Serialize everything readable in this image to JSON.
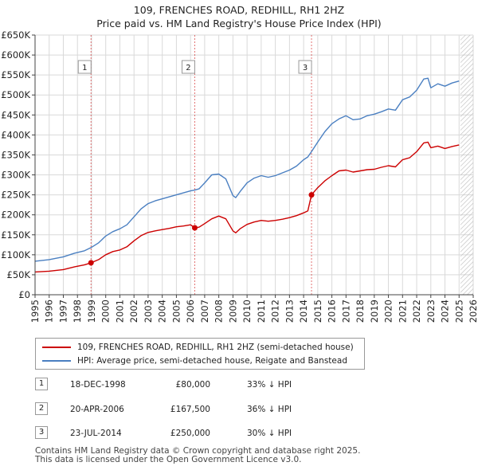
{
  "header": {
    "title_line1": "109, FRENCHES ROAD, REDHILL, RH1 2HZ",
    "title_line2": "Price paid vs. HM Land Registry's House Price Index (HPI)"
  },
  "chart_data": {
    "type": "line",
    "x_range": [
      1995,
      2026
    ],
    "ylim": [
      0,
      650000
    ],
    "x_ticks": [
      "1995",
      "1996",
      "1997",
      "1998",
      "1999",
      "2000",
      "2001",
      "2002",
      "2003",
      "2004",
      "2005",
      "2006",
      "2007",
      "2008",
      "2009",
      "2010",
      "2011",
      "2012",
      "2013",
      "2014",
      "2015",
      "2016",
      "2017",
      "2018",
      "2019",
      "2020",
      "2021",
      "2022",
      "2023",
      "2024",
      "2025",
      "2026"
    ],
    "y_ticks": [
      {
        "v": 0,
        "label": "£0"
      },
      {
        "v": 50000,
        "label": "£50K"
      },
      {
        "v": 100000,
        "label": "£100K"
      },
      {
        "v": 150000,
        "label": "£150K"
      },
      {
        "v": 200000,
        "label": "£200K"
      },
      {
        "v": 250000,
        "label": "£250K"
      },
      {
        "v": 300000,
        "label": "£300K"
      },
      {
        "v": 350000,
        "label": "£350K"
      },
      {
        "v": 400000,
        "label": "£400K"
      },
      {
        "v": 450000,
        "label": "£450K"
      },
      {
        "v": 500000,
        "label": "£500K"
      },
      {
        "v": 550000,
        "label": "£550K"
      },
      {
        "v": 600000,
        "label": "£600K"
      },
      {
        "v": 650000,
        "label": "£650K"
      }
    ],
    "grid": true,
    "hatch_after": 2025.1,
    "series": [
      {
        "name": "109, FRENCHES ROAD, REDHILL, RH1 2HZ (semi-detached house)",
        "color": "#cc0000",
        "x": [
          1995.0,
          1996.0,
          1997.0,
          1997.8,
          1998.5,
          1998.96,
          1999.5,
          2000.0,
          2000.5,
          2001.0,
          2001.5,
          2002.0,
          2002.5,
          2003.0,
          2003.5,
          2004.0,
          2004.5,
          2005.0,
          2005.5,
          2006.0,
          2006.3,
          2006.6,
          2007.0,
          2007.5,
          2008.0,
          2008.5,
          2009.0,
          2009.2,
          2009.5,
          2010.0,
          2010.5,
          2011.0,
          2011.5,
          2012.0,
          2012.5,
          2013.0,
          2013.5,
          2014.0,
          2014.3,
          2014.56,
          2015.0,
          2015.5,
          2016.0,
          2016.5,
          2017.0,
          2017.5,
          2018.0,
          2018.5,
          2019.0,
          2019.5,
          2020.0,
          2020.5,
          2021.0,
          2021.5,
          2022.0,
          2022.5,
          2022.8,
          2023.0,
          2023.5,
          2024.0,
          2024.5,
          2025.0
        ],
        "y": [
          57000,
          59000,
          63000,
          70000,
          75000,
          80000,
          88000,
          100000,
          108000,
          112000,
          120000,
          135000,
          148000,
          156000,
          160000,
          163000,
          166000,
          170000,
          172000,
          175000,
          167500,
          169000,
          178000,
          190000,
          197000,
          190000,
          160000,
          155000,
          165000,
          176000,
          182000,
          186000,
          184000,
          186000,
          189000,
          193000,
          198000,
          205000,
          210000,
          250000,
          268000,
          285000,
          298000,
          310000,
          312000,
          307000,
          310000,
          313000,
          314000,
          319000,
          323000,
          320000,
          338000,
          343000,
          358000,
          380000,
          382000,
          368000,
          372000,
          366000,
          371000,
          375000
        ]
      },
      {
        "name": "HPI: Average price, semi-detached house, Reigate and Banstead",
        "color": "#4a7fc1",
        "x": [
          1995.0,
          1996.0,
          1997.0,
          1997.8,
          1998.5,
          1998.96,
          1999.5,
          2000.0,
          2000.5,
          2001.0,
          2001.5,
          2002.0,
          2002.5,
          2003.0,
          2003.5,
          2004.0,
          2004.5,
          2005.0,
          2005.5,
          2006.0,
          2006.3,
          2006.6,
          2007.0,
          2007.5,
          2008.0,
          2008.5,
          2009.0,
          2009.2,
          2009.5,
          2010.0,
          2010.5,
          2011.0,
          2011.5,
          2012.0,
          2012.5,
          2013.0,
          2013.5,
          2014.0,
          2014.3,
          2014.56,
          2015.0,
          2015.5,
          2016.0,
          2016.5,
          2017.0,
          2017.5,
          2018.0,
          2018.5,
          2019.0,
          2019.5,
          2020.0,
          2020.5,
          2021.0,
          2021.5,
          2022.0,
          2022.5,
          2022.8,
          2023.0,
          2023.5,
          2024.0,
          2024.5,
          2025.0
        ],
        "y": [
          84000,
          88000,
          95000,
          104000,
          110000,
          118000,
          130000,
          147000,
          158000,
          165000,
          175000,
          195000,
          215000,
          228000,
          235000,
          240000,
          245000,
          250000,
          255000,
          260000,
          262000,
          265000,
          280000,
          300000,
          302000,
          290000,
          248000,
          243000,
          258000,
          280000,
          292000,
          298000,
          294000,
          298000,
          305000,
          312000,
          322000,
          338000,
          345000,
          358000,
          382000,
          408000,
          428000,
          440000,
          448000,
          438000,
          440000,
          448000,
          452000,
          458000,
          465000,
          462000,
          488000,
          495000,
          512000,
          540000,
          542000,
          518000,
          528000,
          522000,
          530000,
          535000
        ]
      }
    ],
    "sales": [
      {
        "n": "1",
        "x": 1998.96,
        "y": 80000
      },
      {
        "n": "2",
        "x": 2006.3,
        "y": 167500
      },
      {
        "n": "3",
        "x": 2014.56,
        "y": 250000
      }
    ]
  },
  "legend": {
    "item1": "109, FRENCHES ROAD, REDHILL, RH1 2HZ (semi-detached house)",
    "item2": "HPI: Average price, semi-detached house, Reigate and Banstead"
  },
  "transactions": [
    {
      "n": "1",
      "date": "18-DEC-1998",
      "price": "£80,000",
      "pct": "33% ↓ HPI"
    },
    {
      "n": "2",
      "date": "20-APR-2006",
      "price": "£167,500",
      "pct": "36% ↓ HPI"
    },
    {
      "n": "3",
      "date": "23-JUL-2014",
      "price": "£250,000",
      "pct": "30% ↓ HPI"
    }
  ],
  "footer": {
    "line1": "Contains HM Land Registry data © Crown copyright and database right 2025.",
    "line2": "This data is licensed under the Open Government Licence v3.0."
  },
  "colors": {
    "red": "#cc0000",
    "blue": "#4a7fc1",
    "grid": "#d9d9d9",
    "border": "#999999"
  }
}
